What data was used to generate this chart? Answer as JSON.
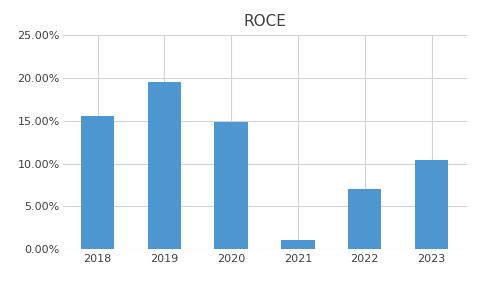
{
  "title": "ROCE",
  "categories": [
    "2018",
    "2019",
    "2020",
    "2021",
    "2022",
    "2023"
  ],
  "values": [
    0.155,
    0.195,
    0.148,
    0.011,
    0.07,
    0.104
  ],
  "bar_color": "#4D96D0",
  "ylim": [
    0,
    0.25
  ],
  "yticks": [
    0.0,
    0.05,
    0.1,
    0.15,
    0.2,
    0.25
  ],
  "background_color": "#ffffff",
  "grid_color": "#d3d3d3",
  "title_fontsize": 11,
  "tick_fontsize": 8
}
